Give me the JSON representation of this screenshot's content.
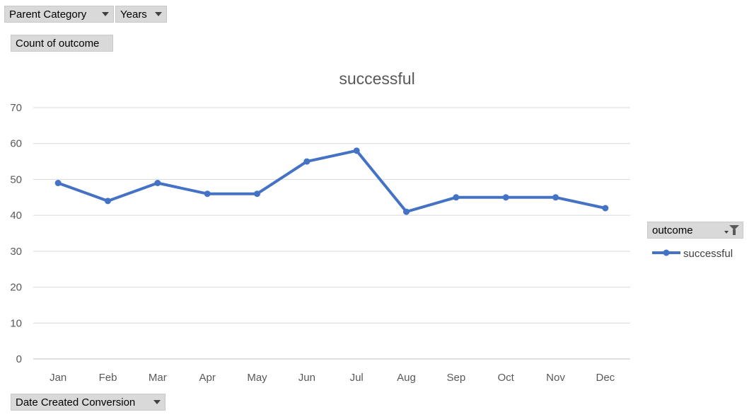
{
  "filters": {
    "parent_category": "Parent Category",
    "years": "Years",
    "values_field": "Count of outcome",
    "axis_field": "Date Created Conversion",
    "legend_field": "outcome"
  },
  "chart_data": {
    "type": "line",
    "title": "successful",
    "categories": [
      "Jan",
      "Feb",
      "Mar",
      "Apr",
      "May",
      "Jun",
      "Jul",
      "Aug",
      "Sep",
      "Oct",
      "Nov",
      "Dec"
    ],
    "series": [
      {
        "name": "successful",
        "values": [
          49,
          44,
          49,
          46,
          46,
          55,
          58,
          41,
          45,
          45,
          45,
          42
        ],
        "color": "#4472c4"
      }
    ],
    "ylim": [
      0,
      70
    ],
    "yticks": [
      0,
      10,
      20,
      30,
      40,
      50,
      60,
      70
    ],
    "grid": true,
    "legend": "right"
  }
}
